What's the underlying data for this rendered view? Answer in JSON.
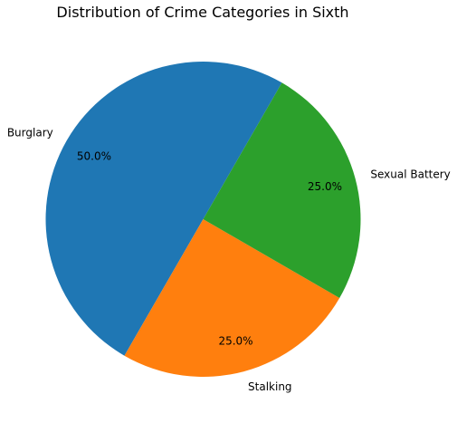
{
  "chart_data": {
    "type": "pie",
    "title": "Distribution of Crime Categories in Sixth",
    "categories": [
      "Burglary",
      "Stalking",
      "Sexual Battery"
    ],
    "values": [
      50.0,
      25.0,
      25.0
    ],
    "percent_labels": [
      "50.0%",
      "25.0%",
      "25.0%"
    ],
    "colors": [
      "#1f77b4",
      "#ff7f0e",
      "#2ca02c"
    ],
    "start_angle_deg": 60,
    "direction": "counterclockwise",
    "legend": "none"
  }
}
